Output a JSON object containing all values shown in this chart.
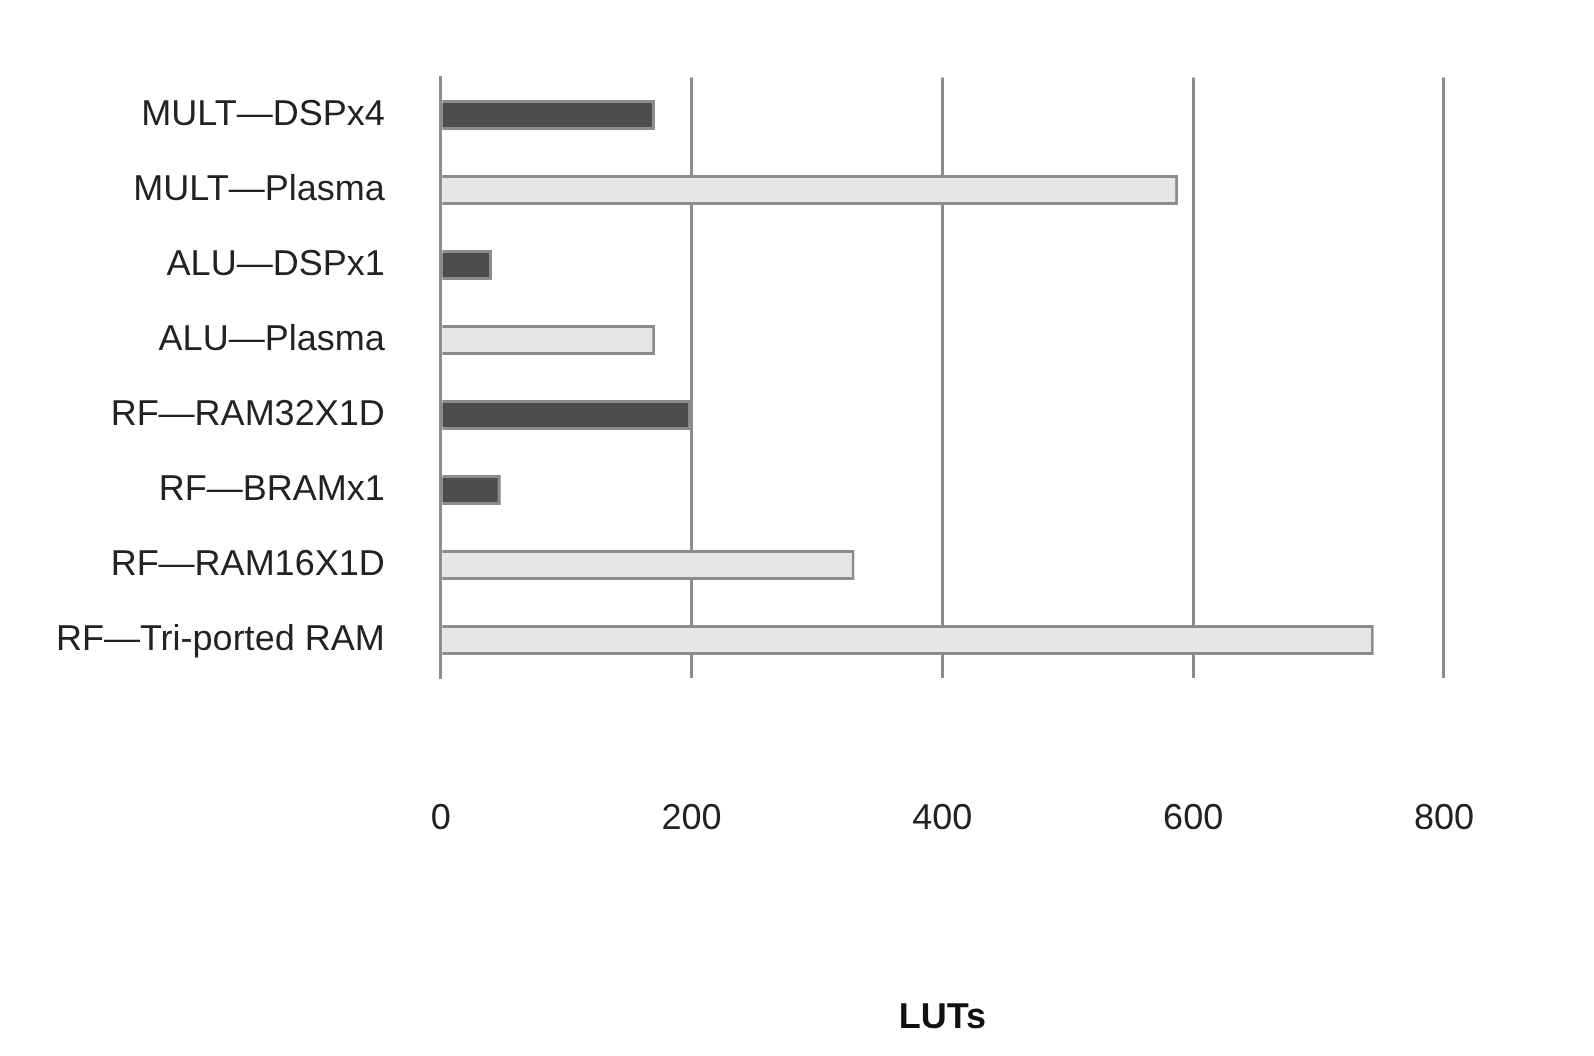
{
  "chart_data": {
    "type": "bar",
    "orientation": "horizontal",
    "xlabel": "LUTs",
    "categories": [
      "MULT—DSPx4",
      "MULT—Plasma",
      "ALU—DSPx1",
      "ALU—Plasma",
      "RF—RAM32X1D",
      "RF—BRAMx1",
      "RF—RAM16X1D",
      "RF—Tri-ported RAM"
    ],
    "values": [
      171,
      588,
      41,
      171,
      200,
      48,
      330,
      744
    ],
    "colors": [
      "#4d4d4d",
      "#e6e6e6",
      "#4d4d4d",
      "#e6e6e6",
      "#4d4d4d",
      "#4d4d4d",
      "#e6e6e6",
      "#e6e6e6"
    ],
    "xlim": [
      0,
      800
    ],
    "xticks": [
      0,
      200,
      400,
      600,
      800
    ],
    "grid": "x",
    "legend": false
  }
}
